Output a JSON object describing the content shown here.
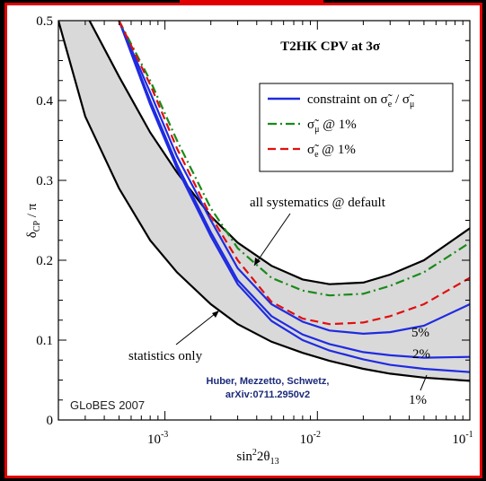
{
  "chart_data": {
    "type": "line",
    "title": "T2HK  CPV at 3σ",
    "xlabel_base": "sin",
    "xlabel_sup": "2",
    "xlabel_mid": "2θ",
    "xlabel_sub": "13",
    "ylabel_main": "δ",
    "ylabel_sub": "CP",
    "ylabel_tail": " / π",
    "xscale": "log",
    "xlim": [
      0.0002,
      0.1
    ],
    "ylim": [
      0,
      0.5
    ],
    "x_ticks": [
      {
        "value": 0.001,
        "base": "10",
        "exp": "-3"
      },
      {
        "value": 0.01,
        "base": "10",
        "exp": "-2"
      },
      {
        "value": 0.1,
        "base": "10",
        "exp": "-1"
      }
    ],
    "y_ticks": [
      {
        "value": 0,
        "label": "0"
      },
      {
        "value": 0.1,
        "label": "0.1"
      },
      {
        "value": 0.2,
        "label": "0.2"
      },
      {
        "value": 0.3,
        "label": "0.3"
      },
      {
        "value": 0.4,
        "label": "0.4"
      },
      {
        "value": 0.5,
        "label": "0.5"
      }
    ],
    "band": {
      "name": "all systematics @ default",
      "color": "#d9d9d9",
      "upper": {
        "x": [
          0.00032,
          0.0005,
          0.0008,
          0.0012,
          0.002,
          0.003,
          0.005,
          0.008,
          0.012,
          0.02,
          0.03,
          0.05,
          0.1
        ],
        "y": [
          0.5,
          0.43,
          0.36,
          0.31,
          0.255,
          0.222,
          0.193,
          0.176,
          0.17,
          0.172,
          0.182,
          0.2,
          0.24
        ]
      },
      "lower": {
        "x": [
          0.0002,
          0.0003,
          0.0005,
          0.0008,
          0.0012,
          0.002,
          0.003,
          0.005,
          0.008,
          0.012,
          0.02,
          0.03,
          0.05,
          0.1
        ],
        "y": [
          0.5,
          0.38,
          0.29,
          0.225,
          0.185,
          0.145,
          0.12,
          0.098,
          0.084,
          0.074,
          0.064,
          0.058,
          0.053,
          0.049
        ]
      }
    },
    "series": [
      {
        "name": "constraint on σ̃e / σ̃μ",
        "legend_main": "constraint on σ̃",
        "legend_sub1": "e",
        "legend_mid": " / σ̃",
        "legend_sub2": "μ",
        "color": "#1f2be0",
        "dash": "",
        "label": "5%",
        "x": [
          0.0005,
          0.0008,
          0.0012,
          0.002,
          0.003,
          0.005,
          0.008,
          0.012,
          0.02,
          0.03,
          0.05,
          0.1
        ],
        "y": [
          0.5,
          0.41,
          0.33,
          0.25,
          0.19,
          0.145,
          0.123,
          0.112,
          0.108,
          0.11,
          0.118,
          0.145
        ]
      },
      {
        "name": "2%",
        "color": "#1f2be0",
        "dash": "",
        "label": "2%",
        "x": [
          0.0005,
          0.0008,
          0.0012,
          0.002,
          0.003,
          0.005,
          0.008,
          0.012,
          0.02,
          0.03,
          0.05,
          0.1
        ],
        "y": [
          0.5,
          0.4,
          0.32,
          0.235,
          0.175,
          0.13,
          0.107,
          0.095,
          0.085,
          0.081,
          0.078,
          0.079
        ]
      },
      {
        "name": "1%",
        "color": "#1f2be0",
        "dash": "",
        "label": "1%",
        "x": [
          0.0005,
          0.0008,
          0.0012,
          0.002,
          0.003,
          0.005,
          0.008,
          0.012,
          0.02,
          0.03,
          0.05,
          0.1
        ],
        "y": [
          0.5,
          0.395,
          0.315,
          0.23,
          0.17,
          0.124,
          0.1,
          0.087,
          0.076,
          0.069,
          0.064,
          0.06
        ]
      },
      {
        "name": "σ̃μ @ 1%",
        "legend_main": "σ̃",
        "legend_sub1": "μ",
        "legend_mid": " @ 1%",
        "legend_sub2": "",
        "color": "#1a8a1a",
        "dash": "10,4,2,4",
        "x": [
          0.0005,
          0.0008,
          0.0012,
          0.002,
          0.003,
          0.005,
          0.008,
          0.012,
          0.02,
          0.03,
          0.05,
          0.1
        ],
        "y": [
          0.5,
          0.425,
          0.35,
          0.265,
          0.215,
          0.178,
          0.162,
          0.156,
          0.158,
          0.168,
          0.185,
          0.222
        ]
      },
      {
        "name": "σ̃e @ 1%",
        "legend_main": "σ̃",
        "legend_sub1": "e",
        "legend_mid": " @ 1%",
        "legend_sub2": "",
        "color": "#e01010",
        "dash": "9,5",
        "x": [
          0.0005,
          0.0008,
          0.0012,
          0.002,
          0.003,
          0.005,
          0.008,
          0.012,
          0.02,
          0.03,
          0.05,
          0.1
        ],
        "y": [
          0.5,
          0.42,
          0.34,
          0.255,
          0.2,
          0.148,
          0.127,
          0.12,
          0.122,
          0.13,
          0.145,
          0.178
        ]
      }
    ],
    "annotations": {
      "systematics": "all systematics @ default",
      "statistics": "statistics only"
    },
    "grid": false
  },
  "footer": {
    "globes": "GLoBES 2007",
    "citation_line1": "Huber, Mezzetto, Schwetz,",
    "citation_line2": "arXiv:0711.2950v2"
  },
  "colors": {
    "frame": "#000000",
    "border": "#e00000",
    "citation": "#1a2a7a"
  }
}
